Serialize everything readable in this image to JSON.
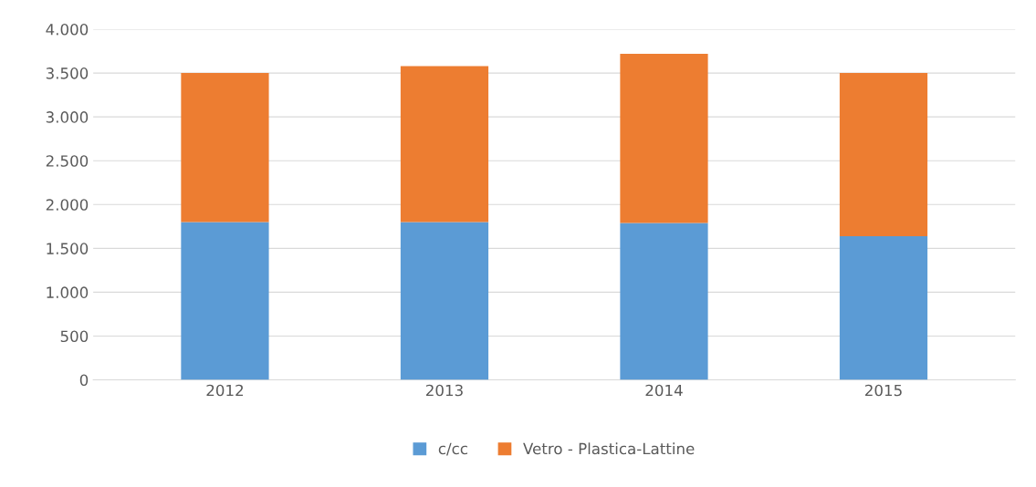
{
  "chart_data": {
    "type": "bar",
    "stacked": true,
    "categories": [
      "2012",
      "2013",
      "2014",
      "2015"
    ],
    "series": [
      {
        "name": "c/cc",
        "color": "#5b9bd5",
        "values": [
          1800,
          1800,
          1790,
          1640
        ]
      },
      {
        "name": "Vetro - Plastica-Lattine",
        "color": "#ed7d31",
        "values": [
          1700,
          1780,
          1930,
          1860
        ]
      }
    ],
    "ylim": [
      0,
      4000
    ],
    "yticks": [
      {
        "value": 0,
        "label": "0"
      },
      {
        "value": 500,
        "label": "500"
      },
      {
        "value": 1000,
        "label": "1.000"
      },
      {
        "value": 1500,
        "label": "1.500"
      },
      {
        "value": 2000,
        "label": "2.000"
      },
      {
        "value": 2500,
        "label": "2.500"
      },
      {
        "value": 3000,
        "label": "3.000"
      },
      {
        "value": 3500,
        "label": "3.500"
      },
      {
        "value": 4000,
        "label": "4.000"
      }
    ],
    "grid": "y",
    "legend": "bottom"
  }
}
